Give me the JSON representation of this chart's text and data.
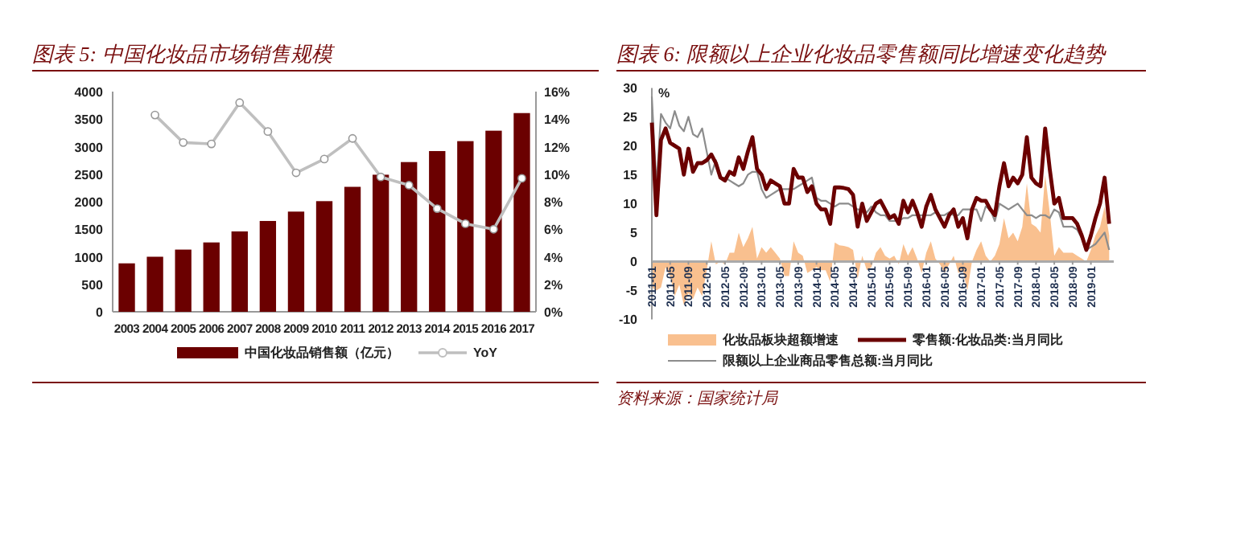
{
  "chart_data": [
    {
      "type": "bar",
      "title": "图表 5:  中国化妆品市场销售规模",
      "categories": [
        "2003",
        "2004",
        "2005",
        "2006",
        "2007",
        "2008",
        "2009",
        "2010",
        "2011",
        "2012",
        "2013",
        "2014",
        "2015",
        "2016",
        "2017"
      ],
      "series": [
        {
          "name": "中国化妆品销售额（亿元）",
          "color": "#6b0000",
          "values": [
            880,
            1000,
            1130,
            1260,
            1460,
            1650,
            1820,
            2010,
            2270,
            2490,
            2720,
            2920,
            3100,
            3290,
            3610
          ]
        },
        {
          "name": "YoY",
          "type": "line",
          "axis": "y2",
          "marker": "circle",
          "color": "#bfbfbf",
          "values": [
            null,
            14.3,
            12.3,
            12.2,
            15.2,
            13.1,
            10.1,
            11.1,
            12.6,
            9.8,
            9.2,
            7.5,
            6.4,
            6.0,
            9.7
          ]
        }
      ],
      "ylim": [
        0,
        4000
      ],
      "yticks": [
        0,
        500,
        1000,
        1500,
        2000,
        2500,
        3000,
        3500,
        4000
      ],
      "y2lim": [
        0,
        16
      ],
      "y2ticks": [
        {
          "value": 0,
          "label": "0%"
        },
        {
          "value": 2,
          "label": "2%"
        },
        {
          "value": 4,
          "label": "4%"
        },
        {
          "value": 6,
          "label": "6%"
        },
        {
          "value": 8,
          "label": "8%"
        },
        {
          "value": 10,
          "label": "10%"
        },
        {
          "value": 12,
          "label": "12%"
        },
        {
          "value": 14,
          "label": "14%"
        },
        {
          "value": 16,
          "label": "16%"
        }
      ],
      "legend": "bottom"
    },
    {
      "type": "line",
      "title": "图表 6:  限额以上企业化妆品零售额同比增速变化趋势",
      "ylabel": "%",
      "x": [
        "2011-01",
        "2011-02",
        "2011-03",
        "2011-04",
        "2011-05",
        "2011-06",
        "2011-07",
        "2011-08",
        "2011-09",
        "2011-10",
        "2011-11",
        "2011-12",
        "2012-01",
        "2012-02",
        "2012-03",
        "2012-04",
        "2012-05",
        "2012-06",
        "2012-07",
        "2012-08",
        "2012-09",
        "2012-10",
        "2012-11",
        "2012-12",
        "2013-01",
        "2013-02",
        "2013-03",
        "2013-04",
        "2013-05",
        "2013-06",
        "2013-07",
        "2013-08",
        "2013-09",
        "2013-10",
        "2013-11",
        "2013-12",
        "2014-01",
        "2014-02",
        "2014-03",
        "2014-04",
        "2014-05",
        "2014-06",
        "2014-07",
        "2014-08",
        "2014-09",
        "2014-10",
        "2014-11",
        "2014-12",
        "2015-01",
        "2015-02",
        "2015-03",
        "2015-04",
        "2015-05",
        "2015-06",
        "2015-07",
        "2015-08",
        "2015-09",
        "2015-10",
        "2015-11",
        "2015-12",
        "2016-01",
        "2016-02",
        "2016-03",
        "2016-04",
        "2016-05",
        "2016-06",
        "2016-07",
        "2016-08",
        "2016-09",
        "2016-10",
        "2016-11",
        "2016-12",
        "2017-01",
        "2017-02",
        "2017-03",
        "2017-04",
        "2017-05",
        "2017-06",
        "2017-07",
        "2017-08",
        "2017-09",
        "2017-10",
        "2017-11",
        "2017-12",
        "2018-01",
        "2018-02",
        "2018-03",
        "2018-04",
        "2018-05",
        "2018-06",
        "2018-07",
        "2018-08",
        "2018-09",
        "2018-10",
        "2018-11",
        "2018-12",
        "2019-01",
        "2019-02",
        "2019-03",
        "2019-04",
        "2019-05"
      ],
      "series": [
        {
          "name": "化妆品板块超额增速",
          "type": "area",
          "color": "#f9c08f",
          "values": [
            -4.5,
            -5,
            -4.5,
            -1,
            -2.5,
            -6,
            -4,
            -7.5,
            -5.5,
            -6.5,
            -4.5,
            -6,
            -1.5,
            3.5,
            -0.5,
            0,
            -0.5,
            1.5,
            1.5,
            5,
            2.5,
            4,
            6,
            0.5,
            2.5,
            1.5,
            2.5,
            1.5,
            0.5,
            -2.5,
            -2.5,
            3.5,
            1.5,
            1,
            -2,
            -1.5,
            -1,
            -1.5,
            -1.5,
            -3.5,
            3.3,
            2.8,
            2.7,
            2.5,
            2,
            -3,
            1,
            -1.5,
            -1,
            1.5,
            2.5,
            1,
            0.5,
            1,
            -0.5,
            3,
            1,
            2.5,
            0.5,
            -2,
            1.5,
            3.5,
            0.5,
            -0.5,
            -2,
            -0.5,
            1,
            -2,
            -1.5,
            -5,
            0,
            2,
            3.5,
            1,
            0,
            1,
            3,
            7.5,
            4,
            5,
            3.5,
            6,
            13.5,
            6.5,
            6,
            5,
            15,
            8.5,
            1,
            2.5,
            1.5,
            1.5,
            1.5,
            1,
            0.5,
            0,
            2,
            4.5,
            6,
            9.5,
            4.5
          ]
        },
        {
          "name": "零售额:化妆品类:当月同比",
          "type": "line",
          "color": "#6b0000",
          "values": [
            24,
            8,
            21,
            23,
            20.5,
            20,
            19.5,
            15,
            19.5,
            15.5,
            17,
            17,
            17.5,
            18.5,
            17,
            14.5,
            14,
            15.5,
            15,
            18,
            16,
            19,
            21.5,
            16,
            15,
            12.5,
            14,
            13.5,
            13,
            10,
            10,
            16,
            14.5,
            14.5,
            12,
            13,
            10,
            9,
            9,
            6.5,
            12.8,
            12.8,
            12.7,
            12.5,
            11.5,
            6,
            10,
            7,
            8.5,
            10,
            10.5,
            9,
            7.5,
            8,
            6.5,
            10.5,
            8.5,
            10.5,
            8.5,
            6,
            9.5,
            11.5,
            9,
            7.5,
            6,
            8,
            9,
            6,
            7.5,
            4,
            9,
            11,
            10.5,
            10.5,
            9,
            8,
            13,
            17,
            13,
            14.5,
            13.5,
            15,
            21.5,
            14.5,
            13.5,
            13,
            23,
            16,
            10,
            11,
            7.5,
            7.5,
            7.5,
            6.5,
            4.5,
            2,
            4.5,
            7.5,
            10,
            14.5,
            6.5
          ]
        },
        {
          "name": "限额以上企业商品零售总额:当月同比",
          "type": "line",
          "color": "#8c8c8c",
          "values": [
            28.5,
            13,
            25.5,
            24,
            23,
            26,
            23.5,
            22.5,
            25,
            22,
            21.5,
            23,
            19,
            15,
            17.5,
            14.5,
            14.5,
            14,
            13.5,
            13,
            13.5,
            15,
            15.5,
            15.5,
            12.5,
            11,
            11.5,
            12,
            12.5,
            12.5,
            12.5,
            12.5,
            13,
            13.5,
            14,
            14.5,
            11,
            10.5,
            10.5,
            10,
            9.5,
            10,
            10,
            10,
            9.5,
            9,
            9,
            8.5,
            9.5,
            8.5,
            8,
            8,
            7,
            7,
            7,
            7.5,
            7.5,
            8,
            8,
            8,
            8,
            8,
            8.5,
            8,
            8,
            8.5,
            8,
            8,
            9,
            9,
            9,
            9,
            7,
            9.5,
            9,
            7,
            10,
            9.5,
            9,
            9.5,
            10,
            9,
            8,
            8,
            7.5,
            8,
            8,
            7.5,
            9,
            8.5,
            6,
            6,
            6,
            5.5,
            4,
            2,
            2.5,
            3,
            4,
            5,
            2
          ]
        }
      ],
      "xlim": [
        "2011-01",
        "2019-06"
      ],
      "xticks": [
        "2011-01",
        "2011-05",
        "2011-09",
        "2012-01",
        "2012-05",
        "2012-09",
        "2013-01",
        "2013-05",
        "2013-09",
        "2014-01",
        "2014-05",
        "2014-09",
        "2015-01",
        "2015-05",
        "2015-09",
        "2016-01",
        "2016-05",
        "2016-09",
        "2017-01",
        "2017-05",
        "2017-09",
        "2018-01",
        "2018-05",
        "2018-09",
        "2019-01"
      ],
      "ylim": [
        -10,
        30
      ],
      "yticks": [
        -10,
        -5,
        0,
        5,
        10,
        15,
        20,
        25,
        30
      ],
      "legend": "bottom",
      "annotations": [
        "资料来源：国家统计局"
      ]
    }
  ]
}
